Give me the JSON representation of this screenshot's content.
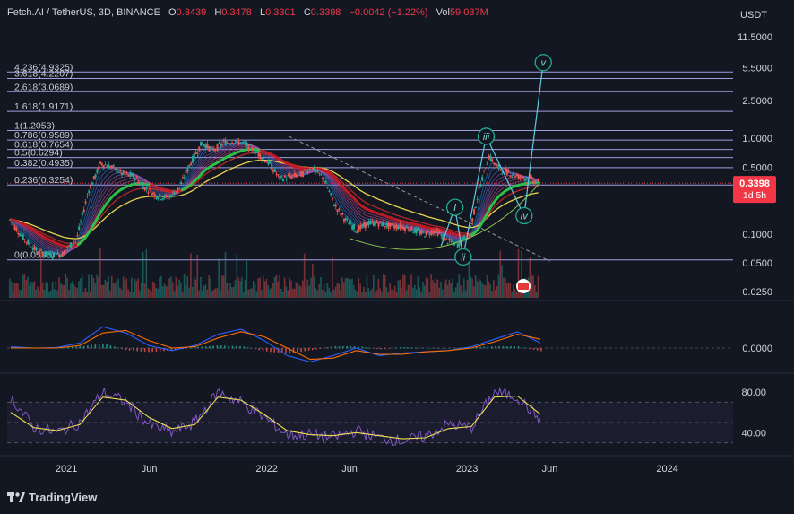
{
  "header": {
    "symbol": "Fetch.AI / TetherUS, 3D, BINANCE",
    "open_label": "O",
    "open": "0.3439",
    "high_label": "H",
    "high": "0.3478",
    "low_label": "L",
    "low": "0.3301",
    "close_label": "C",
    "close": "0.3398",
    "change": "−0.0042 (−1.22%)",
    "vol_label": "Vol",
    "vol": "59.037M"
  },
  "currency": "USDT",
  "price_tag": {
    "price": "0.3398",
    "countdown": "1d 5h"
  },
  "brand": "TradingView",
  "colors": {
    "background": "#131722",
    "up": "#26a69a",
    "down": "#ef5350",
    "fib": "#b3b8ff",
    "rsi": "#7e57c2",
    "rsi_ma": "#f0e050",
    "macd": "#2962ff",
    "signal": "#ff6d00",
    "wave": "#22ab94",
    "price_tag": "#f23645"
  },
  "waves": [
    {
      "label": "i",
      "date": "2022-12-10",
      "price": 0.19
    },
    {
      "label": "ii",
      "date": "2022-12-25",
      "price": 0.0575
    },
    {
      "label": "iii",
      "date": "2023-02-05",
      "price": 1.05
    },
    {
      "label": "iv",
      "date": "2023-04-15",
      "price": 0.155
    },
    {
      "label": "v",
      "date": "2023-05-20",
      "price": 6.2
    }
  ],
  "chart_data": [
    {
      "type": "line",
      "title": "Fetch.AI / TetherUS, 3D, BINANCE",
      "y_scale": "log",
      "ylim": [
        0.0215,
        14
      ],
      "y_ticks": [
        "11.5000",
        "5.5000",
        "2.5000",
        "1.0000",
        "0.5000",
        "0.2500",
        "0.1000",
        "0.0500",
        "0.0250"
      ],
      "y_tick_values": [
        11.5,
        5.5,
        2.5,
        1.0,
        0.5,
        0.25,
        0.1,
        0.05,
        0.025
      ],
      "x_ticks": [
        "2021",
        "Jun",
        "2022",
        "Jun",
        "2023",
        "Jun",
        "2024"
      ],
      "x_tick_dates": [
        "2021-01-01",
        "2021-06-01",
        "2022-01-01",
        "2022-06-01",
        "2023-01-01",
        "2023-06-01",
        "2024-01-01"
      ],
      "xlim": [
        "2020-09-15",
        "2024-04-25"
      ],
      "fib_levels": [
        {
          "label": "4.236(4.9325)",
          "value": 4.9325
        },
        {
          "label": "3.618(4.2207)",
          "value": 4.2207
        },
        {
          "label": "2.618(3.0689)",
          "value": 3.0689
        },
        {
          "label": "1.618(1.9171)",
          "value": 1.9171
        },
        {
          "label": "1(1.2053)",
          "value": 1.2053
        },
        {
          "label": "0.786(0.9589)",
          "value": 0.9589
        },
        {
          "label": "0.618(0.7654)",
          "value": 0.7654
        },
        {
          "label": "0.5(0.6294)",
          "value": 0.6294
        },
        {
          "label": "0.382(0.4935)",
          "value": 0.4935
        },
        {
          "label": "0.236(0.3254)",
          "value": 0.3254
        },
        {
          "label": "0(0.0536)",
          "value": 0.0536
        }
      ],
      "series": [
        {
          "x": [
            "2020-09-20",
            "2020-10-15",
            "2020-11-10",
            "2020-12-05",
            "2020-12-25",
            "2021-01-20",
            "2021-02-10",
            "2021-03-05",
            "2021-03-25",
            "2021-04-15",
            "2021-05-05",
            "2021-05-25",
            "2021-06-15",
            "2021-07-05",
            "2021-07-25",
            "2021-08-15",
            "2021-09-05",
            "2021-09-25",
            "2021-10-15",
            "2021-11-05",
            "2021-11-25",
            "2021-12-15",
            "2022-01-05",
            "2022-01-25",
            "2022-02-15",
            "2022-03-05",
            "2022-03-25",
            "2022-04-15",
            "2022-05-05",
            "2022-05-25",
            "2022-06-15",
            "2022-07-05",
            "2022-07-25",
            "2022-08-15",
            "2022-09-05",
            "2022-09-25",
            "2022-10-15",
            "2022-11-05",
            "2022-11-25",
            "2022-12-15",
            "2023-01-05",
            "2023-01-25",
            "2023-02-10",
            "2023-02-25",
            "2023-03-15",
            "2023-04-05",
            "2023-04-25",
            "2023-05-12"
          ],
          "values": [
            0.14,
            0.09,
            0.065,
            0.06,
            0.062,
            0.09,
            0.28,
            0.55,
            0.5,
            0.42,
            0.4,
            0.3,
            0.25,
            0.24,
            0.3,
            0.55,
            0.9,
            0.75,
            0.9,
            0.95,
            0.85,
            0.7,
            0.55,
            0.38,
            0.4,
            0.42,
            0.5,
            0.38,
            0.2,
            0.14,
            0.11,
            0.13,
            0.13,
            0.12,
            0.12,
            0.11,
            0.1,
            0.11,
            0.085,
            0.078,
            0.1,
            0.32,
            0.65,
            0.5,
            0.45,
            0.4,
            0.38,
            0.3398
          ]
        }
      ]
    },
    {
      "type": "line",
      "title": "",
      "ylim": [
        -1,
        1
      ],
      "y_ticks": [
        "0.0000"
      ],
      "y_tick_values": [
        0
      ],
      "series": [
        {
          "x": [
            0,
            2,
            4,
            6,
            8,
            10,
            12,
            14,
            16,
            18,
            20,
            22,
            24,
            26,
            28,
            30,
            32,
            34,
            36,
            38,
            40,
            42,
            44,
            46
          ],
          "values": [
            0.05,
            0.0,
            0.02,
            0.2,
            0.85,
            0.6,
            0.1,
            -0.1,
            0.1,
            0.55,
            0.75,
            0.3,
            -0.3,
            -0.55,
            -0.3,
            0.0,
            -0.3,
            -0.2,
            -0.15,
            -0.1,
            0.05,
            0.35,
            0.65,
            0.2
          ]
        },
        {
          "x": [
            0,
            2,
            4,
            6,
            8,
            10,
            12,
            14,
            16,
            18,
            20,
            22,
            24,
            26,
            28,
            30,
            32,
            34,
            36,
            38,
            40,
            42,
            44,
            46
          ],
          "values": [
            0.0,
            0.0,
            0.0,
            0.1,
            0.6,
            0.7,
            0.3,
            0.0,
            0.05,
            0.4,
            0.65,
            0.45,
            0.0,
            -0.45,
            -0.4,
            -0.1,
            -0.25,
            -0.25,
            -0.15,
            -0.1,
            0.0,
            0.25,
            0.55,
            0.35
          ]
        }
      ]
    },
    {
      "type": "line",
      "title": "",
      "ylim": [
        20,
        95
      ],
      "y_ticks": [
        "80.00",
        "40.00"
      ],
      "y_tick_values": [
        80,
        40
      ],
      "bands": [
        70,
        50,
        30
      ],
      "series": [
        {
          "x": [
            0,
            2,
            4,
            6,
            8,
            10,
            12,
            14,
            16,
            18,
            20,
            22,
            24,
            26,
            28,
            30,
            32,
            34,
            36,
            38,
            40,
            42,
            44,
            46
          ],
          "values": [
            75,
            45,
            40,
            50,
            80,
            70,
            48,
            40,
            50,
            80,
            70,
            55,
            38,
            38,
            35,
            42,
            35,
            32,
            36,
            48,
            45,
            80,
            75,
            52
          ]
        },
        {
          "x": [
            0,
            2,
            4,
            6,
            8,
            10,
            12,
            14,
            16,
            18,
            20,
            22,
            24,
            26,
            28,
            30,
            32,
            34,
            36,
            38,
            40,
            42,
            44,
            46
          ],
          "values": [
            60,
            45,
            42,
            48,
            75,
            72,
            55,
            44,
            48,
            75,
            72,
            58,
            42,
            38,
            37,
            40,
            37,
            34,
            35,
            44,
            46,
            75,
            76,
            58
          ]
        }
      ]
    }
  ]
}
